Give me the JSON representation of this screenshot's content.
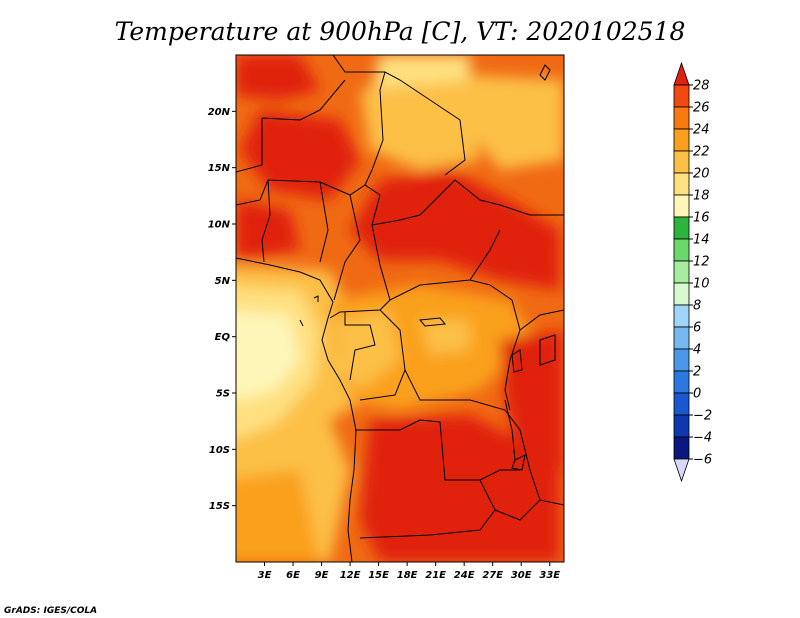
{
  "title": "Temperature at 900hPa [C], VT: 2020102518",
  "credit": "GrADS: IGES/COLA",
  "map": {
    "lon_range": [
      0,
      34.5
    ],
    "lat_range": [
      -20,
      25
    ],
    "lat_ticks": [
      {
        "value": 20,
        "label": "20N"
      },
      {
        "value": 15,
        "label": "15N"
      },
      {
        "value": 10,
        "label": "10N"
      },
      {
        "value": 5,
        "label": "5N"
      },
      {
        "value": 0,
        "label": "EQ"
      },
      {
        "value": -5,
        "label": "5S"
      },
      {
        "value": -10,
        "label": "10S"
      },
      {
        "value": -15,
        "label": "15S"
      }
    ],
    "lon_ticks": [
      {
        "value": 3,
        "label": "3E"
      },
      {
        "value": 6,
        "label": "6E"
      },
      {
        "value": 9,
        "label": "9E"
      },
      {
        "value": 12,
        "label": "12E"
      },
      {
        "value": 15,
        "label": "15E"
      },
      {
        "value": 18,
        "label": "18E"
      },
      {
        "value": 21,
        "label": "21E"
      },
      {
        "value": 24,
        "label": "24E"
      },
      {
        "value": 27,
        "label": "27E"
      },
      {
        "value": 30,
        "label": "30E"
      },
      {
        "value": 33,
        "label": "33E"
      }
    ]
  },
  "colorbar": {
    "levels": [
      "28",
      "26",
      "24",
      "22",
      "20",
      "18",
      "16",
      "14",
      "12",
      "10",
      "8",
      "6",
      "4",
      "2",
      "0",
      "−2",
      "−4",
      "−6"
    ],
    "colors": [
      "#e02010",
      "#f04a10",
      "#f87a10",
      "#faa01e",
      "#fcc046",
      "#fee080",
      "#fef6b8",
      "#2cb43c",
      "#6cd86c",
      "#a8eca0",
      "#d8f8d0",
      "#a0d4f8",
      "#78b8f0",
      "#4c98e8",
      "#2c78e0",
      "#1a58d0",
      "#0e38b0",
      "#081880",
      "#d8d8f8"
    ]
  }
}
